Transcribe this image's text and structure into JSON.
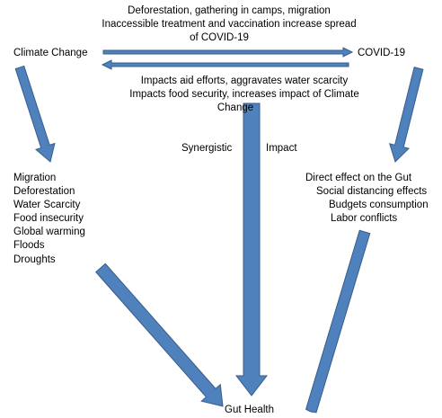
{
  "top_label": [
    "Deforestation, gathering in camps, migration",
    "Inaccessible treatment and vaccination increase spread",
    "of COVID-19"
  ],
  "nodes": {
    "climate_change": "Climate Change",
    "covid": "COVID-19",
    "gut_health": "Gut Health"
  },
  "bottom_label": [
    "Impacts aid efforts, aggravates water scarcity",
    "Impacts food security, increases impact of Climate",
    "Change"
  ],
  "synergy": [
    "Synergistic",
    "Impact"
  ],
  "climate_effects": [
    "Migration",
    "Deforestation",
    "Water Scarcity",
    "Food insecurity",
    "Global warming",
    "Floods",
    "Droughts"
  ],
  "covid_effects": [
    "Direct effect on the Gut",
    "Social distancing effects",
    "Budgets consumption",
    "Labor conflicts"
  ]
}
